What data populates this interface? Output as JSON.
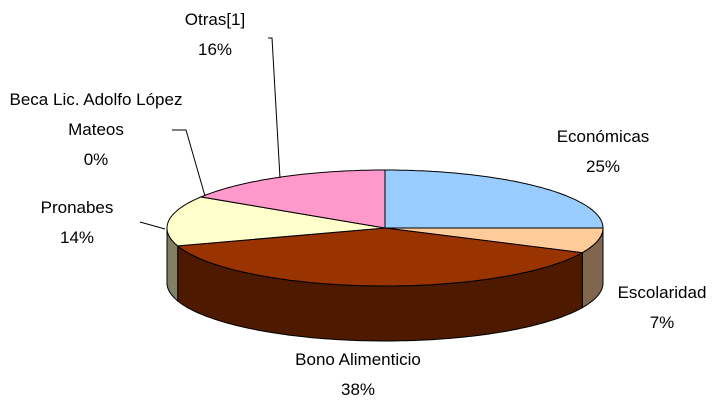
{
  "chart_data": {
    "type": "pie",
    "three_d": true,
    "categories": [
      "Económicas",
      "Escolaridad",
      "Bono Alimenticio",
      "Pronabes",
      "Beca Lic. Adolfo López Mateos",
      "Otras[1]"
    ],
    "values": [
      25,
      7,
      38,
      14,
      0,
      16
    ],
    "value_labels": [
      "25%",
      "7%",
      "38%",
      "14%",
      "0%",
      "16%"
    ],
    "colors": [
      "#99ccff",
      "#ffcc99",
      "#993300",
      "#ffffcc",
      "#cc99ff",
      "#ff99cc"
    ]
  }
}
